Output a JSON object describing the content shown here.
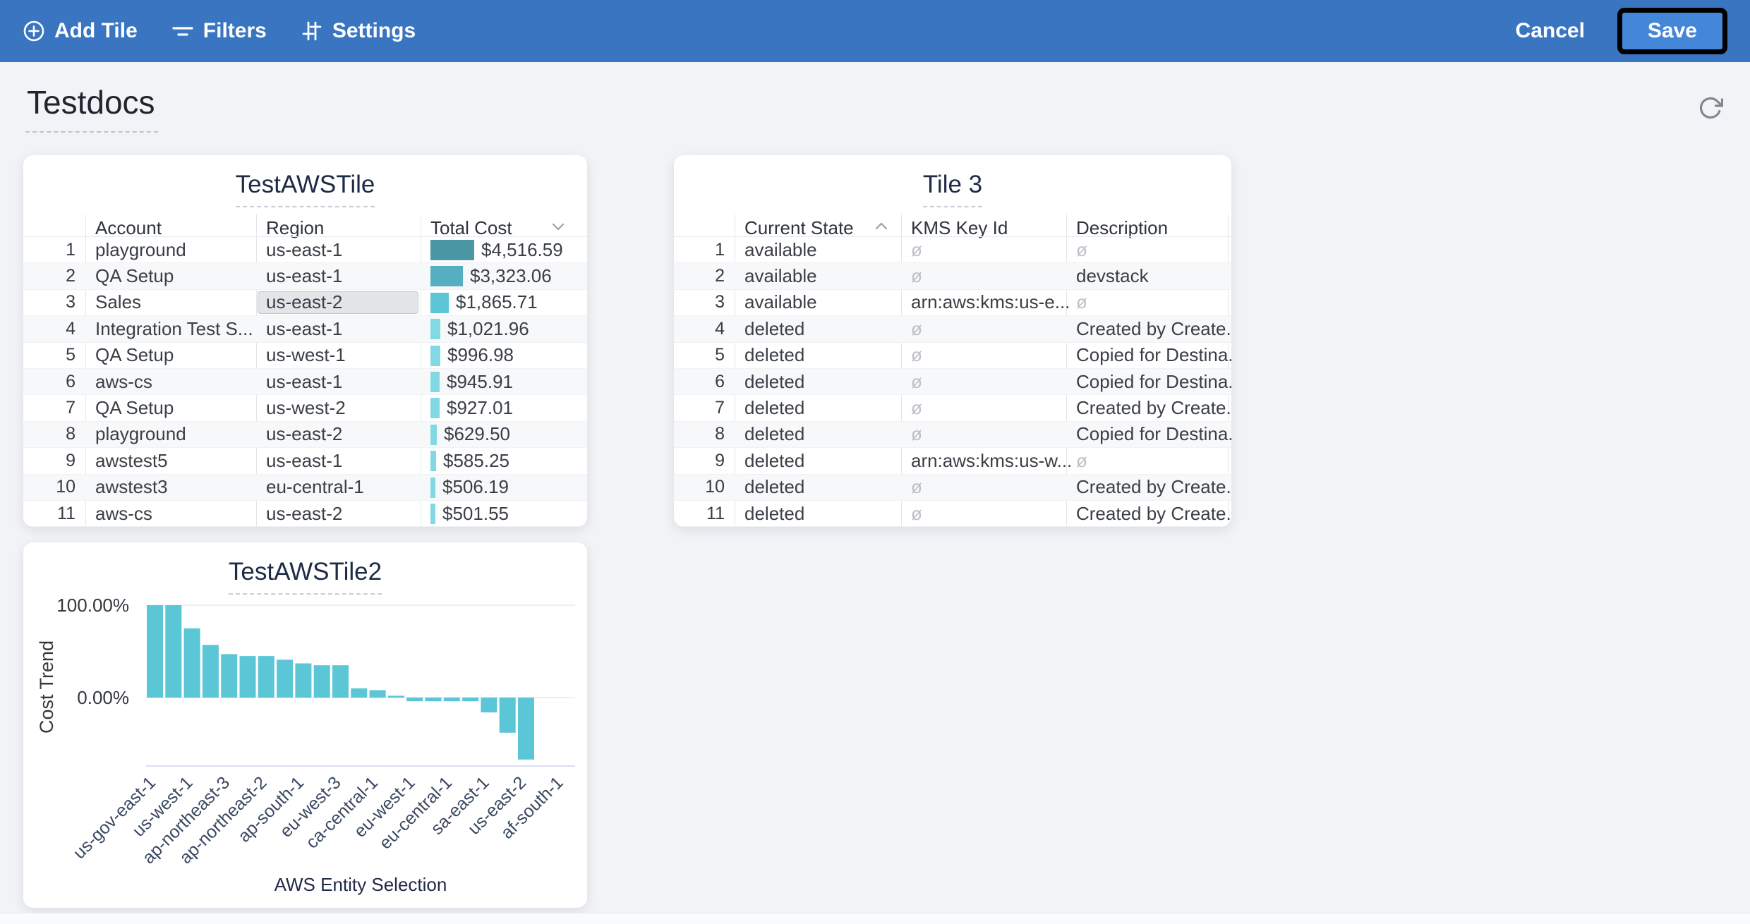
{
  "toolbar": {
    "add_tile_label": "Add Tile",
    "filters_label": "Filters",
    "settings_label": "Settings",
    "cancel_label": "Cancel",
    "save_label": "Save",
    "colors": {
      "bar_bg": "#3a75c2",
      "save_bg": "#4486d8"
    }
  },
  "page": {
    "title": "Testdocs"
  },
  "tile1": {
    "title": "TestAWSTile",
    "columns": [
      {
        "label": "Account"
      },
      {
        "label": "Region"
      },
      {
        "label": "Total Cost",
        "sort": "desc"
      }
    ],
    "max_cost_value": 4516.59,
    "rows": [
      {
        "n": "1",
        "account": "playground",
        "region": "us-east-1",
        "cost": "$4,516.59",
        "bar_color": "#4b98a4"
      },
      {
        "n": "2",
        "account": "QA Setup",
        "region": "us-east-1",
        "cost": "$3,323.06",
        "bar_color": "#55afc0"
      },
      {
        "n": "3",
        "account": "Sales",
        "region": "us-east-2",
        "cost": "$1,865.71",
        "bar_color": "#5cc6d6",
        "region_selected": true
      },
      {
        "n": "4",
        "account": "Integration Test S...",
        "region": "us-east-1",
        "cost": "$1,021.96",
        "bar_color": "#82d9e4"
      },
      {
        "n": "5",
        "account": "QA Setup",
        "region": "us-west-1",
        "cost": "$996.98",
        "bar_color": "#82d9e4"
      },
      {
        "n": "6",
        "account": "aws-cs",
        "region": "us-east-1",
        "cost": "$945.91",
        "bar_color": "#82d9e4"
      },
      {
        "n": "7",
        "account": "QA Setup",
        "region": "us-west-2",
        "cost": "$927.01",
        "bar_color": "#82d9e4"
      },
      {
        "n": "8",
        "account": "playground",
        "region": "us-east-2",
        "cost": "$629.50",
        "bar_color": "#82d9e4"
      },
      {
        "n": "9",
        "account": "awstest5",
        "region": "us-east-1",
        "cost": "$585.25",
        "bar_color": "#82d9e4"
      },
      {
        "n": "10",
        "account": "awstest3",
        "region": "eu-central-1",
        "cost": "$506.19",
        "bar_color": "#82d9e4"
      },
      {
        "n": "11",
        "account": "aws-cs",
        "region": "us-east-2",
        "cost": "$501.55",
        "bar_color": "#82d9e4"
      }
    ],
    "clipped_next_row": true
  },
  "tile2": {
    "title": "Tile 3",
    "columns": [
      {
        "label": "Current State",
        "sort": "asc"
      },
      {
        "label": "KMS Key Id"
      },
      {
        "label": "Description"
      }
    ],
    "rows": [
      {
        "n": "1",
        "state": "available",
        "kms": "ø",
        "desc": "ø"
      },
      {
        "n": "2",
        "state": "available",
        "kms": "ø",
        "desc": "devstack"
      },
      {
        "n": "3",
        "state": "available",
        "kms": "arn:aws:kms:us-e...",
        "desc": "ø"
      },
      {
        "n": "4",
        "state": "deleted",
        "kms": "ø",
        "desc": "Created by Create..."
      },
      {
        "n": "5",
        "state": "deleted",
        "kms": "ø",
        "desc": "Copied for Destina..."
      },
      {
        "n": "6",
        "state": "deleted",
        "kms": "ø",
        "desc": "Copied for Destina..."
      },
      {
        "n": "7",
        "state": "deleted",
        "kms": "ø",
        "desc": "Created by Create..."
      },
      {
        "n": "8",
        "state": "deleted",
        "kms": "ø",
        "desc": "Copied for Destina..."
      },
      {
        "n": "9",
        "state": "deleted",
        "kms": "arn:aws:kms:us-w...",
        "desc": "ø"
      },
      {
        "n": "10",
        "state": "deleted",
        "kms": "ø",
        "desc": "Created by Create..."
      },
      {
        "n": "11",
        "state": "deleted",
        "kms": "ø",
        "desc": "Created by Create..."
      }
    ]
  },
  "chart_data": {
    "type": "bar",
    "title": "TestAWSTile2",
    "xlabel": "AWS Entity Selection",
    "ylabel": "Cost Trend",
    "y_tick_labels": [
      "100.00%",
      "0.00%"
    ],
    "y_tick_values": [
      100,
      0
    ],
    "ylim": [
      -74,
      100
    ],
    "grid": true,
    "bar_color": "#5bc6d6",
    "values": [
      100,
      100,
      75,
      57,
      47,
      45,
      45,
      41,
      37,
      35,
      35,
      10,
      8,
      2,
      -4,
      -4,
      -4,
      -4,
      -16,
      -38,
      -67
    ],
    "x_tick_labels": [
      "us-gov-east-1",
      "us-west-1",
      "ap-northeast-3",
      "ap-northeast-2",
      "ap-south-1",
      "eu-west-3",
      "ca-central-1",
      "eu-west-1",
      "eu-central-1",
      "sa-east-1",
      "us-east-2",
      "af-south-1"
    ]
  }
}
